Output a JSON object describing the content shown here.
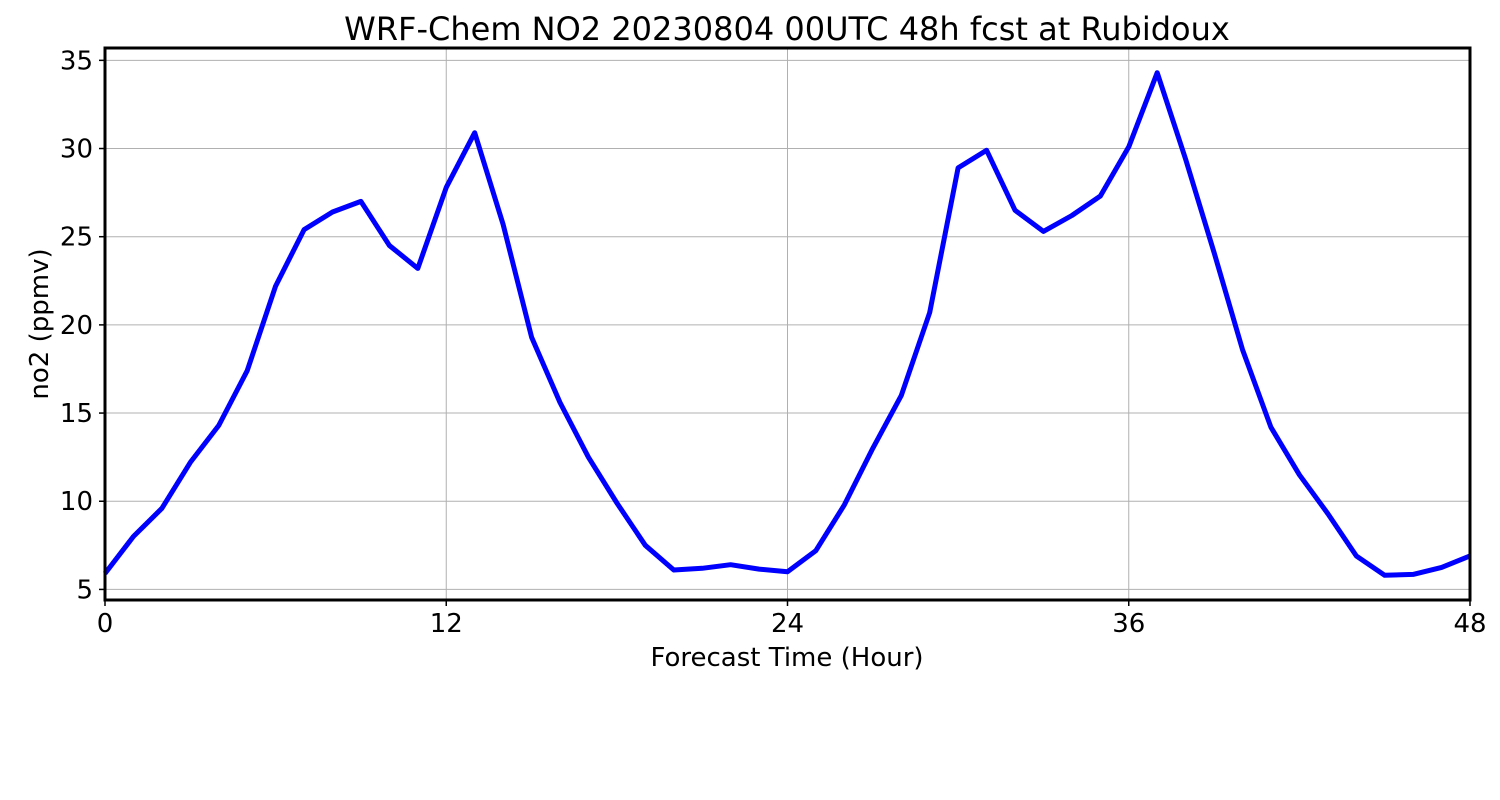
{
  "chart_data": {
    "type": "line",
    "title": "WRF-Chem NO2  20230804 00UTC 48h fcst at Rubidoux",
    "xlabel": "Forecast Time (Hour)",
    "ylabel": "no2  (ppmv)",
    "xlim": [
      0,
      48
    ],
    "ylim": [
      4.4,
      35.7
    ],
    "xticks": [
      0,
      12,
      24,
      36,
      48
    ],
    "yticks": [
      5,
      10,
      15,
      20,
      25,
      30,
      35
    ],
    "xtick_labels": [
      "0",
      "12",
      "24",
      "36",
      "48"
    ],
    "ytick_labels": [
      "5",
      "10",
      "15",
      "20",
      "25",
      "30",
      "35"
    ],
    "grid": true,
    "series": [
      {
        "color": "#0000ff",
        "x": [
          0,
          1,
          2,
          3,
          4,
          5,
          6,
          7,
          8,
          9,
          10,
          11,
          12,
          13,
          14,
          15,
          16,
          17,
          18,
          19,
          20,
          21,
          22,
          23,
          24,
          25,
          26,
          27,
          28,
          29,
          30,
          31,
          32,
          33,
          34,
          35,
          36,
          37,
          38,
          39,
          40,
          41,
          42,
          43,
          44,
          45,
          46,
          47,
          48
        ],
        "y": [
          5.9,
          8.0,
          9.6,
          12.2,
          14.3,
          17.4,
          22.2,
          25.4,
          26.4,
          27.0,
          24.5,
          23.2,
          27.8,
          30.9,
          25.7,
          19.3,
          15.6,
          12.5,
          9.9,
          7.5,
          6.1,
          6.2,
          6.4,
          6.15,
          6.0,
          7.2,
          9.8,
          13.0,
          16.0,
          20.7,
          28.9,
          29.9,
          26.5,
          25.3,
          26.2,
          27.3,
          30.1,
          34.3,
          29.4,
          24.1,
          18.6,
          14.2,
          11.5,
          9.3,
          6.9,
          5.8,
          5.85,
          6.25,
          6.9
        ]
      }
    ]
  }
}
